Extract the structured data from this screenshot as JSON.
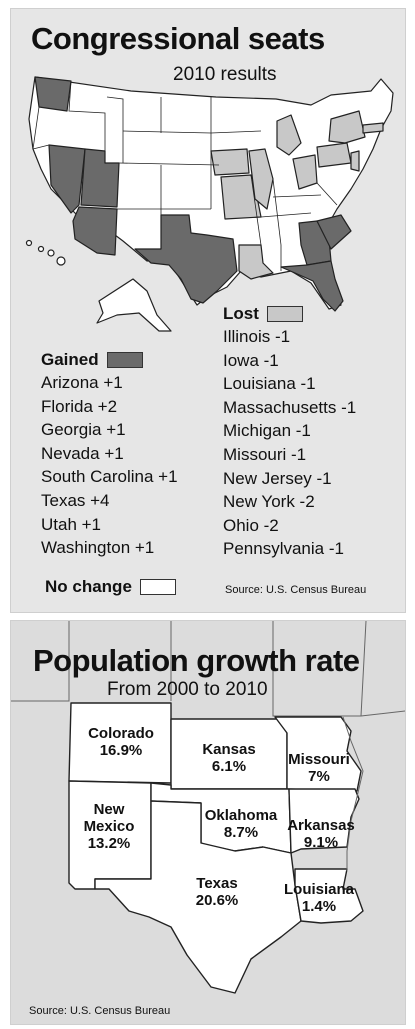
{
  "seats": {
    "title": "Congressional seats",
    "subtitle": "2010 results",
    "gained": {
      "label": "Gained",
      "items": [
        "Arizona +1",
        "Florida +2",
        "Georgia +1",
        "Nevada +1",
        "South Carolina +1",
        "Texas +4",
        "Utah +1",
        "Washington +1"
      ]
    },
    "lost": {
      "label": "Lost",
      "items": [
        "Illinois -1",
        "Iowa -1",
        "Louisiana -1",
        "Massachusetts -1",
        "Michigan -1",
        "Missouri -1",
        "New Jersey -1",
        "New York -2",
        "Ohio -2",
        "Pennsylvania -1"
      ]
    },
    "no_change_label": "No change",
    "source": "Source: U.S. Census Bureau",
    "colors": {
      "gained": "#6a6a6a",
      "lost": "#c8c8c8",
      "no_change": "#ffffff"
    }
  },
  "growth": {
    "title": "Population growth rate",
    "subtitle": "From 2000 to 2010",
    "source": "Source: U.S. Census Bureau",
    "states": [
      {
        "name": "Colorado",
        "rate": "16.9%"
      },
      {
        "name": "Kansas",
        "rate": "6.1%"
      },
      {
        "name": "Missouri",
        "rate": "7%"
      },
      {
        "name": "New Mexico",
        "rate": "13.2%"
      },
      {
        "name": "Oklahoma",
        "rate": "8.7%"
      },
      {
        "name": "Arkansas",
        "rate": "9.1%"
      },
      {
        "name": "Texas",
        "rate": "20.6%"
      },
      {
        "name": "Louisiana",
        "rate": "1.4%"
      }
    ]
  }
}
